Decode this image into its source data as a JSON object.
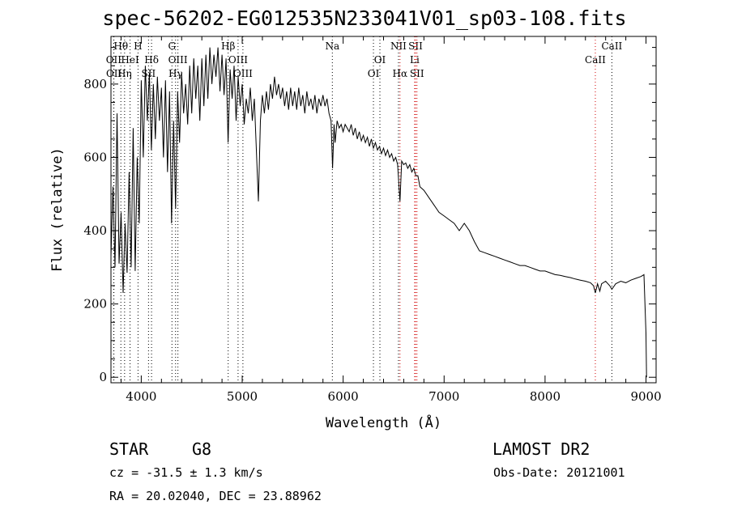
{
  "chart_data": {
    "type": "line",
    "title": "spec-56202-EG012535N233041V01_sp03-108.fits",
    "xlabel": "Wavelength (Å)",
    "ylabel": "Flux (relative)",
    "xlim": [
      3700,
      9100
    ],
    "ylim": [
      -15,
      930
    ],
    "x_ticks": [
      4000,
      5000,
      6000,
      7000,
      8000,
      9000
    ],
    "y_ticks": [
      0,
      200,
      400,
      600,
      800
    ],
    "series": [
      {
        "values": [
          [
            3700,
            330
          ],
          [
            3720,
            520
          ],
          [
            3740,
            300
          ],
          [
            3760,
            720
          ],
          [
            3780,
            310
          ],
          [
            3800,
            450
          ],
          [
            3820,
            230
          ],
          [
            3840,
            420
          ],
          [
            3860,
            285
          ],
          [
            3880,
            560
          ],
          [
            3900,
            300
          ],
          [
            3920,
            680
          ],
          [
            3940,
            290
          ],
          [
            3960,
            600
          ],
          [
            3980,
            420
          ],
          [
            4000,
            810
          ],
          [
            4020,
            600
          ],
          [
            4040,
            850
          ],
          [
            4060,
            700
          ],
          [
            4080,
            830
          ],
          [
            4100,
            620
          ],
          [
            4120,
            800
          ],
          [
            4140,
            650
          ],
          [
            4160,
            820
          ],
          [
            4180,
            700
          ],
          [
            4200,
            790
          ],
          [
            4220,
            600
          ],
          [
            4240,
            810
          ],
          [
            4260,
            560
          ],
          [
            4280,
            780
          ],
          [
            4300,
            420
          ],
          [
            4320,
            700
          ],
          [
            4340,
            460
          ],
          [
            4360,
            780
          ],
          [
            4380,
            640
          ],
          [
            4400,
            830
          ],
          [
            4420,
            720
          ],
          [
            4440,
            800
          ],
          [
            4460,
            690
          ],
          [
            4480,
            850
          ],
          [
            4500,
            720
          ],
          [
            4520,
            870
          ],
          [
            4540,
            760
          ],
          [
            4560,
            850
          ],
          [
            4580,
            700
          ],
          [
            4600,
            870
          ],
          [
            4620,
            740
          ],
          [
            4640,
            880
          ],
          [
            4660,
            760
          ],
          [
            4680,
            900
          ],
          [
            4700,
            800
          ],
          [
            4720,
            880
          ],
          [
            4740,
            820
          ],
          [
            4760,
            900
          ],
          [
            4780,
            780
          ],
          [
            4800,
            880
          ],
          [
            4820,
            770
          ],
          [
            4840,
            870
          ],
          [
            4860,
            640
          ],
          [
            4880,
            840
          ],
          [
            4900,
            760
          ],
          [
            4920,
            850
          ],
          [
            4940,
            700
          ],
          [
            4960,
            820
          ],
          [
            4980,
            740
          ],
          [
            5000,
            800
          ],
          [
            5020,
            690
          ],
          [
            5040,
            760
          ],
          [
            5060,
            720
          ],
          [
            5080,
            790
          ],
          [
            5100,
            700
          ],
          [
            5120,
            760
          ],
          [
            5140,
            620
          ],
          [
            5160,
            480
          ],
          [
            5180,
            700
          ],
          [
            5200,
            770
          ],
          [
            5220,
            720
          ],
          [
            5240,
            780
          ],
          [
            5260,
            730
          ],
          [
            5280,
            800
          ],
          [
            5300,
            760
          ],
          [
            5320,
            820
          ],
          [
            5340,
            770
          ],
          [
            5360,
            800
          ],
          [
            5380,
            760
          ],
          [
            5400,
            790
          ],
          [
            5420,
            740
          ],
          [
            5440,
            780
          ],
          [
            5460,
            730
          ],
          [
            5480,
            790
          ],
          [
            5500,
            740
          ],
          [
            5520,
            780
          ],
          [
            5540,
            730
          ],
          [
            5560,
            790
          ],
          [
            5580,
            740
          ],
          [
            5600,
            770
          ],
          [
            5620,
            720
          ],
          [
            5640,
            780
          ],
          [
            5660,
            740
          ],
          [
            5680,
            760
          ],
          [
            5700,
            730
          ],
          [
            5720,
            770
          ],
          [
            5740,
            720
          ],
          [
            5760,
            760
          ],
          [
            5780,
            740
          ],
          [
            5800,
            770
          ],
          [
            5820,
            740
          ],
          [
            5840,
            760
          ],
          [
            5860,
            720
          ],
          [
            5880,
            700
          ],
          [
            5895,
            570
          ],
          [
            5910,
            690
          ],
          [
            5920,
            640
          ],
          [
            5940,
            700
          ],
          [
            5960,
            680
          ],
          [
            5980,
            690
          ],
          [
            6000,
            670
          ],
          [
            6020,
            690
          ],
          [
            6040,
            680
          ],
          [
            6060,
            670
          ],
          [
            6080,
            690
          ],
          [
            6100,
            660
          ],
          [
            6120,
            680
          ],
          [
            6140,
            650
          ],
          [
            6160,
            670
          ],
          [
            6180,
            645
          ],
          [
            6200,
            660
          ],
          [
            6220,
            640
          ],
          [
            6240,
            655
          ],
          [
            6260,
            630
          ],
          [
            6280,
            650
          ],
          [
            6300,
            625
          ],
          [
            6320,
            640
          ],
          [
            6340,
            620
          ],
          [
            6360,
            630
          ],
          [
            6380,
            610
          ],
          [
            6400,
            625
          ],
          [
            6420,
            605
          ],
          [
            6440,
            620
          ],
          [
            6460,
            600
          ],
          [
            6480,
            610
          ],
          [
            6500,
            590
          ],
          [
            6520,
            600
          ],
          [
            6540,
            580
          ],
          [
            6563,
            480
          ],
          [
            6580,
            590
          ],
          [
            6600,
            580
          ],
          [
            6620,
            585
          ],
          [
            6640,
            570
          ],
          [
            6660,
            580
          ],
          [
            6680,
            560
          ],
          [
            6700,
            570
          ],
          [
            6720,
            550
          ],
          [
            6740,
            550
          ],
          [
            6760,
            520
          ],
          [
            6800,
            510
          ],
          [
            6850,
            490
          ],
          [
            6900,
            470
          ],
          [
            6950,
            450
          ],
          [
            7000,
            440
          ],
          [
            7050,
            430
          ],
          [
            7100,
            420
          ],
          [
            7150,
            400
          ],
          [
            7200,
            420
          ],
          [
            7250,
            400
          ],
          [
            7300,
            370
          ],
          [
            7350,
            345
          ],
          [
            7400,
            340
          ],
          [
            7450,
            335
          ],
          [
            7500,
            330
          ],
          [
            7550,
            325
          ],
          [
            7600,
            320
          ],
          [
            7650,
            315
          ],
          [
            7700,
            310
          ],
          [
            7750,
            305
          ],
          [
            7800,
            305
          ],
          [
            7850,
            300
          ],
          [
            7900,
            295
          ],
          [
            7950,
            290
          ],
          [
            8000,
            290
          ],
          [
            8050,
            285
          ],
          [
            8100,
            280
          ],
          [
            8150,
            278
          ],
          [
            8200,
            275
          ],
          [
            8250,
            272
          ],
          [
            8300,
            268
          ],
          [
            8350,
            265
          ],
          [
            8400,
            262
          ],
          [
            8450,
            258
          ],
          [
            8480,
            250
          ],
          [
            8498,
            230
          ],
          [
            8520,
            255
          ],
          [
            8542,
            235
          ],
          [
            8560,
            255
          ],
          [
            8600,
            262
          ],
          [
            8640,
            250
          ],
          [
            8662,
            240
          ],
          [
            8700,
            255
          ],
          [
            8750,
            262
          ],
          [
            8800,
            258
          ],
          [
            8850,
            265
          ],
          [
            8900,
            270
          ],
          [
            8950,
            275
          ],
          [
            8980,
            280
          ],
          [
            9000,
            120
          ],
          [
            9005,
            0
          ]
        ]
      }
    ],
    "lines": [
      {
        "label": "Hθ",
        "rows": [
          1
        ],
        "x": 3798,
        "color": "#000000"
      },
      {
        "label": "OII",
        "rows": [
          2
        ],
        "x": 3727,
        "color": "#000000"
      },
      {
        "label": "OII",
        "rows": [
          3
        ],
        "x": 3729,
        "color": "#000000"
      },
      {
        "label": "Hη",
        "rows": [
          3
        ],
        "x": 3835,
        "color": "#000000"
      },
      {
        "label": "HeI",
        "rows": [
          2
        ],
        "x": 3889,
        "color": "#000000"
      },
      {
        "label": "H",
        "rows": [
          1
        ],
        "x": 3968,
        "color": "#000000"
      },
      {
        "label": "Hδ",
        "rows": [
          2
        ],
        "x": 4102,
        "color": "#000000"
      },
      {
        "label": "SII",
        "rows": [
          3
        ],
        "x": 4072,
        "color": "#000000"
      },
      {
        "label": "G",
        "rows": [
          1
        ],
        "x": 4304,
        "color": "#000000"
      },
      {
        "label": "OIII",
        "rows": [
          2
        ],
        "x": 4363,
        "color": "#000000"
      },
      {
        "label": "Hγ",
        "rows": [
          3
        ],
        "x": 4340,
        "color": "#000000"
      },
      {
        "label": "Hβ",
        "rows": [
          1
        ],
        "x": 4861,
        "color": "#000000"
      },
      {
        "label": "OIII",
        "rows": [
          2
        ],
        "x": 4959,
        "color": "#000000"
      },
      {
        "label": "OIII",
        "rows": [
          3
        ],
        "x": 5007,
        "color": "#000000"
      },
      {
        "label": "Na",
        "rows": [
          1
        ],
        "x": 5893,
        "color": "#000000"
      },
      {
        "label": "OI",
        "rows": [
          2
        ],
        "x": 6364,
        "color": "#000000"
      },
      {
        "label": "OI",
        "rows": [
          3
        ],
        "x": 6300,
        "color": "#000000"
      },
      {
        "label": "NII",
        "rows": [
          1
        ],
        "x": 6548,
        "color": "#000000"
      },
      {
        "label": "SII",
        "rows": [
          1
        ],
        "x": 6717,
        "color": "#d00000"
      },
      {
        "label": "Li",
        "rows": [
          2
        ],
        "x": 6708,
        "color": "#d00000"
      },
      {
        "label": "Hα",
        "rows": [
          3
        ],
        "x": 6563,
        "color": "#d00000"
      },
      {
        "label": "SII",
        "rows": [
          3
        ],
        "x": 6731,
        "color": "#d00000"
      },
      {
        "label": "CaII",
        "rows": [
          1
        ],
        "x": 8662,
        "color": "#000000"
      },
      {
        "label": "CaII",
        "rows": [
          2
        ],
        "x": 8498,
        "color": "#d00000"
      }
    ]
  },
  "footer": {
    "object_type": "STAR",
    "subclass": "G8",
    "survey": "LAMOST DR2",
    "redshift": "cz = -31.5 ± 1.3 km/s",
    "obs_date": "Obs-Date: 20121001",
    "coords": "RA =  20.02040, DEC =  23.88962"
  }
}
